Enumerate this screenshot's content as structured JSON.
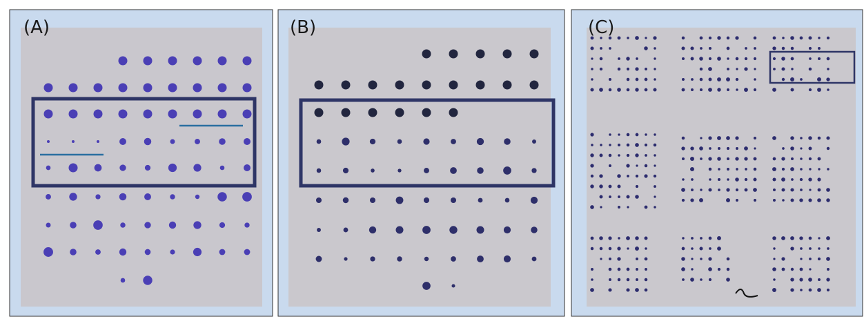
{
  "panels": [
    {
      "label": "(A)"
    },
    {
      "label": "(B)"
    },
    {
      "label": "(C)"
    }
  ]
}
